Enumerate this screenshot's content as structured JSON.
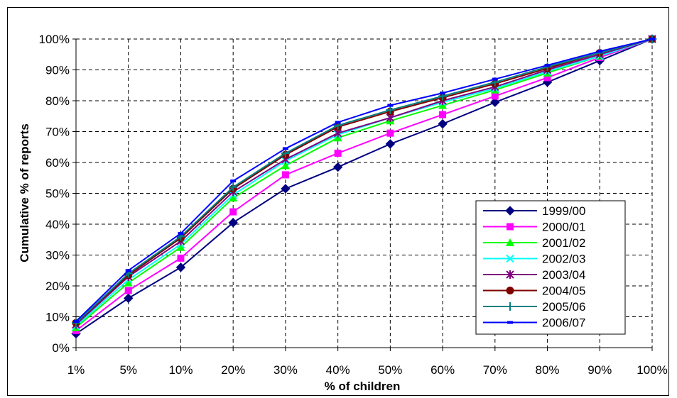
{
  "chart_data": {
    "type": "line",
    "title": "",
    "xlabel": "% of children",
    "ylabel": "Cumulative % of reports",
    "categories": [
      "1%",
      "5%",
      "10%",
      "20%",
      "30%",
      "40%",
      "50%",
      "60%",
      "70%",
      "80%",
      "90%",
      "100%"
    ],
    "yticks": [
      "0%",
      "10%",
      "20%",
      "30%",
      "40%",
      "50%",
      "60%",
      "70%",
      "80%",
      "90%",
      "100%"
    ],
    "ylim": [
      0,
      100
    ],
    "grid": true,
    "legend_position": "right",
    "series": [
      {
        "name": "1999/00",
        "color": "#000080",
        "marker": "diamond",
        "values": [
          4.5,
          16,
          26,
          40.5,
          51.5,
          58.5,
          66,
          72.5,
          79.5,
          86,
          93,
          100
        ]
      },
      {
        "name": "2000/01",
        "color": "#FF00FF",
        "marker": "square",
        "values": [
          5.5,
          18.5,
          29,
          44,
          56,
          63,
          69.5,
          75.5,
          81.5,
          87.5,
          94,
          100
        ]
      },
      {
        "name": "2001/02",
        "color": "#00FF00",
        "marker": "triangle",
        "values": [
          6.5,
          21,
          32.5,
          48.5,
          59,
          68,
          73.5,
          78.5,
          83.5,
          89,
          94.5,
          100
        ]
      },
      {
        "name": "2002/03",
        "color": "#00FFFF",
        "marker": "x",
        "values": [
          7,
          22,
          33.5,
          49.5,
          60.5,
          69,
          74.5,
          79.5,
          84,
          89.5,
          94.5,
          100
        ]
      },
      {
        "name": "2003/04",
        "color": "#800080",
        "marker": "star",
        "values": [
          7.5,
          23,
          34.5,
          50.5,
          61,
          69.5,
          74.5,
          80,
          84.5,
          90,
          95,
          100
        ]
      },
      {
        "name": "2004/05",
        "color": "#800000",
        "marker": "circle",
        "values": [
          8,
          23.5,
          35.5,
          51.5,
          62.5,
          71.5,
          76.5,
          81,
          85.5,
          90.5,
          95.5,
          100
        ]
      },
      {
        "name": "2005/06",
        "color": "#008080",
        "marker": "plus",
        "values": [
          8,
          24,
          36,
          52,
          63,
          72,
          77,
          81.5,
          86,
          91,
          95.5,
          100
        ]
      },
      {
        "name": "2006/07",
        "color": "#0000FF",
        "marker": "dash",
        "values": [
          8.5,
          25,
          37,
          54,
          64.5,
          73,
          78.5,
          82.5,
          87,
          91.5,
          96,
          100
        ]
      }
    ]
  }
}
